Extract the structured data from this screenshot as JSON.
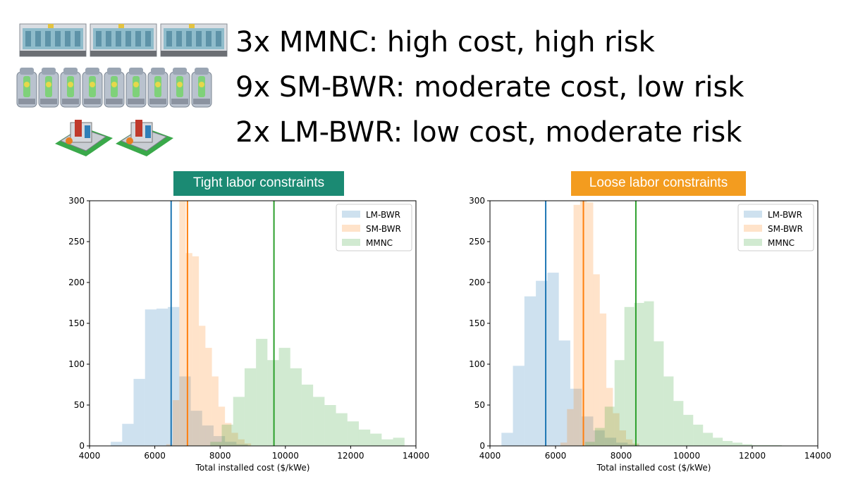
{
  "headlines": [
    "3x MMNC: high cost, high risk",
    "9x SM-BWR: moderate cost, low risk",
    "2x LM-BWR: low cost, moderate risk"
  ],
  "icons": {
    "row1": {
      "name": "mmnc-module-icon",
      "count": 3
    },
    "row2": {
      "name": "sm-bwr-reactor-icon",
      "count": 9
    },
    "row3": {
      "name": "lm-bwr-plant-icon",
      "count": 2
    }
  },
  "colors": {
    "lm_bwr": "#1f77b4",
    "sm_bwr": "#ff7f0e",
    "mmnc": "#2ca02c",
    "tight_banner": "#1b8a73",
    "loose_banner": "#f39c1f"
  },
  "chart_data": [
    {
      "type": "histogram",
      "title": "Tight labor constraints",
      "xlabel": "Total installed cost ($/kWe)",
      "ylabel": "",
      "xlim": [
        4000,
        14000
      ],
      "ylim": [
        0,
        300
      ],
      "xticks": [
        4000,
        6000,
        8000,
        10000,
        12000,
        14000
      ],
      "yticks": [
        0,
        50,
        100,
        150,
        200,
        250,
        300
      ],
      "legend": "top-right",
      "series": [
        {
          "name": "LM-BWR",
          "color": "#1f77b4",
          "mean": 6500,
          "bins": [
            [
              4650,
              5000,
              5
            ],
            [
              5000,
              5350,
              27
            ],
            [
              5350,
              5700,
              82
            ],
            [
              5700,
              6050,
              167
            ],
            [
              6050,
              6400,
              168
            ],
            [
              6400,
              6750,
              170
            ],
            [
              6750,
              7100,
              85
            ],
            [
              7100,
              7450,
              43
            ],
            [
              7450,
              7800,
              25
            ],
            [
              7800,
              8150,
              12
            ],
            [
              8150,
              8500,
              5
            ],
            [
              8500,
              8850,
              2
            ]
          ]
        },
        {
          "name": "SM-BWR",
          "color": "#ff7f0e",
          "mean": 7000,
          "bins": [
            [
              6350,
              6550,
              2
            ],
            [
              6550,
              6750,
              56
            ],
            [
              6750,
              6950,
              300
            ],
            [
              6950,
              7150,
              236
            ],
            [
              7150,
              7350,
              232
            ],
            [
              7350,
              7550,
              147
            ],
            [
              7550,
              7750,
              120
            ],
            [
              7750,
              7950,
              85
            ],
            [
              7950,
              8150,
              48
            ],
            [
              8150,
              8350,
              28
            ],
            [
              8350,
              8550,
              16
            ],
            [
              8550,
              8750,
              8
            ],
            [
              8750,
              8950,
              3
            ]
          ]
        },
        {
          "name": "MMNC",
          "color": "#2ca02c",
          "mean": 9650,
          "bins": [
            [
              7700,
              8050,
              5
            ],
            [
              8050,
              8400,
              26
            ],
            [
              8400,
              8750,
              60
            ],
            [
              8750,
              9100,
              95
            ],
            [
              9100,
              9450,
              131
            ],
            [
              9450,
              9800,
              105
            ],
            [
              9800,
              10150,
              120
            ],
            [
              10150,
              10500,
              95
            ],
            [
              10500,
              10850,
              75
            ],
            [
              10850,
              11200,
              60
            ],
            [
              11200,
              11550,
              50
            ],
            [
              11550,
              11900,
              40
            ],
            [
              11900,
              12250,
              30
            ],
            [
              12250,
              12600,
              20
            ],
            [
              12600,
              12950,
              15
            ],
            [
              12950,
              13300,
              8
            ],
            [
              13300,
              13650,
              10
            ]
          ]
        }
      ]
    },
    {
      "type": "histogram",
      "title": "Loose labor constraints",
      "xlabel": "Total installed cost ($/kWe)",
      "ylabel": "",
      "xlim": [
        4000,
        14000
      ],
      "ylim": [
        0,
        300
      ],
      "xticks": [
        4000,
        6000,
        8000,
        10000,
        12000,
        14000
      ],
      "yticks": [
        0,
        50,
        100,
        150,
        200,
        250,
        300
      ],
      "legend": "top-right",
      "series": [
        {
          "name": "LM-BWR",
          "color": "#1f77b4",
          "mean": 5700,
          "bins": [
            [
              4350,
              4700,
              16
            ],
            [
              4700,
              5050,
              98
            ],
            [
              5050,
              5400,
              183
            ],
            [
              5400,
              5750,
              202
            ],
            [
              5750,
              6100,
              212
            ],
            [
              6100,
              6450,
              129
            ],
            [
              6450,
              6800,
              70
            ],
            [
              6800,
              7150,
              36
            ],
            [
              7150,
              7500,
              19
            ],
            [
              7500,
              7850,
              10
            ],
            [
              7850,
              8200,
              4
            ],
            [
              8200,
              8550,
              2
            ]
          ]
        },
        {
          "name": "SM-BWR",
          "color": "#ff7f0e",
          "mean": 6850,
          "bins": [
            [
              6150,
              6350,
              4
            ],
            [
              6350,
              6550,
              45
            ],
            [
              6550,
              6750,
              295
            ],
            [
              6750,
              6950,
              300
            ],
            [
              6950,
              7150,
              298
            ],
            [
              7150,
              7350,
              210
            ],
            [
              7350,
              7550,
              162
            ],
            [
              7550,
              7750,
              71
            ],
            [
              7750,
              7950,
              40
            ],
            [
              7950,
              8150,
              19
            ],
            [
              8150,
              8350,
              8
            ],
            [
              8350,
              8550,
              3
            ]
          ]
        },
        {
          "name": "MMNC",
          "color": "#2ca02c",
          "mean": 8450,
          "bins": [
            [
              6900,
              7200,
              5
            ],
            [
              7200,
              7500,
              22
            ],
            [
              7500,
              7800,
              48
            ],
            [
              7800,
              8100,
              105
            ],
            [
              8100,
              8400,
              170
            ],
            [
              8400,
              8700,
              175
            ],
            [
              8700,
              9000,
              177
            ],
            [
              9000,
              9300,
              128
            ],
            [
              9300,
              9600,
              85
            ],
            [
              9600,
              9900,
              55
            ],
            [
              9900,
              10200,
              38
            ],
            [
              10200,
              10500,
              26
            ],
            [
              10500,
              10800,
              16
            ],
            [
              10800,
              11100,
              10
            ],
            [
              11100,
              11400,
              6
            ],
            [
              11400,
              11700,
              4
            ],
            [
              11700,
              12000,
              2
            ],
            [
              12000,
              12300,
              1
            ],
            [
              12300,
              12600,
              1
            ],
            [
              12600,
              12900,
              1
            ]
          ]
        }
      ]
    }
  ]
}
